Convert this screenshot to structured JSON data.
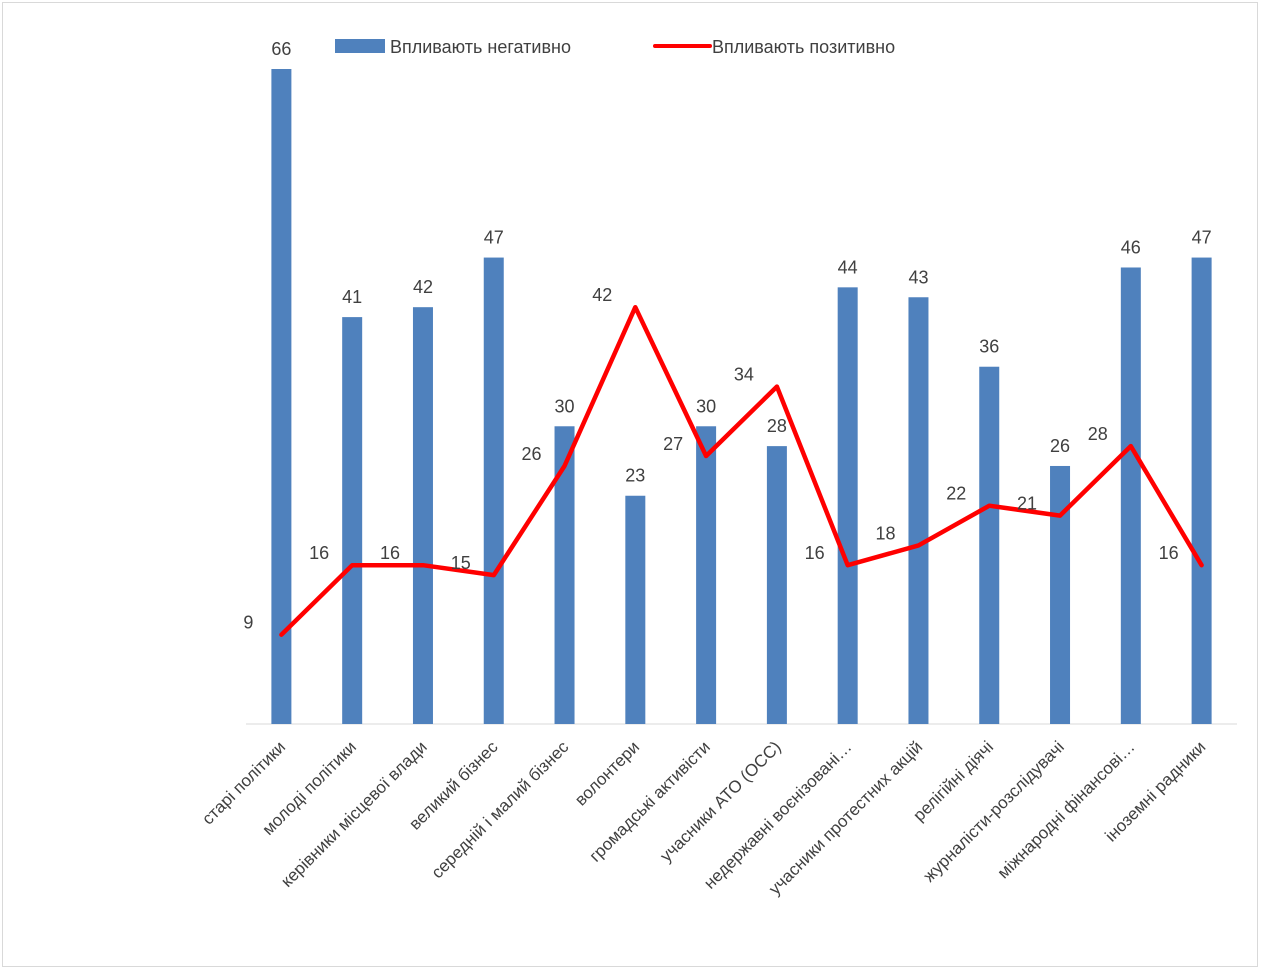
{
  "chart_data": {
    "type": "bar",
    "categories": [
      "старі політики",
      "молоді політики",
      "керівники місцевої влади",
      "великий бізнес",
      "середній і малий бізнес",
      "волонтери",
      "громадські активісти",
      "учасники АТО (ОСС)",
      "недержавні воєнізовані…",
      "учасники протестних акцій",
      "релігійні діячі",
      "журналісти-розслідувачі",
      "міжнародні фінансові…",
      "іноземні радники"
    ],
    "series": [
      {
        "name": "Впливають негативно",
        "type": "bar",
        "color": "#4f81bd",
        "values": [
          66,
          41,
          42,
          47,
          30,
          23,
          30,
          28,
          44,
          43,
          36,
          26,
          46,
          47
        ]
      },
      {
        "name": "Впливають позитивно",
        "type": "line",
        "color": "#ff0000",
        "values": [
          9,
          16,
          16,
          15,
          26,
          42,
          27,
          34,
          16,
          18,
          22,
          21,
          28,
          16
        ]
      }
    ],
    "ylim": [
      0,
      66
    ],
    "grid": false,
    "legend_position": "top"
  }
}
